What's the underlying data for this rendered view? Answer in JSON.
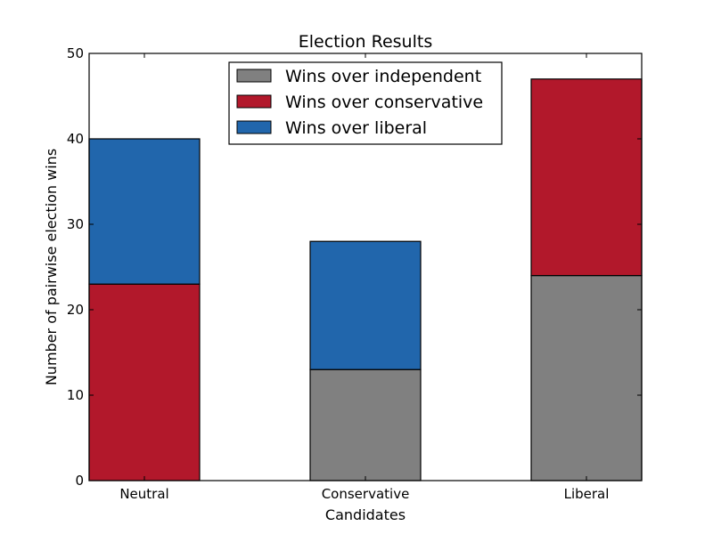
{
  "chart_data": {
    "type": "bar",
    "stacked": true,
    "title": "Election Results",
    "xlabel": "Candidates",
    "ylabel": "Number of pairwise election wins",
    "categories": [
      "Neutral",
      "Conservative",
      "Liberal"
    ],
    "ylim": [
      0,
      50
    ],
    "yticks": [
      "0",
      "10",
      "20",
      "30",
      "40",
      "50"
    ],
    "grid": false,
    "legend_position": "top-center",
    "series": [
      {
        "name": "Wins over independent",
        "color": "#808080",
        "values": [
          0,
          13,
          24
        ]
      },
      {
        "name": "Wins over conservative",
        "color": "#b2182b",
        "values": [
          23,
          0,
          23
        ]
      },
      {
        "name": "Wins over liberal",
        "color": "#2166ac",
        "values": [
          17,
          15,
          0
        ]
      }
    ]
  }
}
